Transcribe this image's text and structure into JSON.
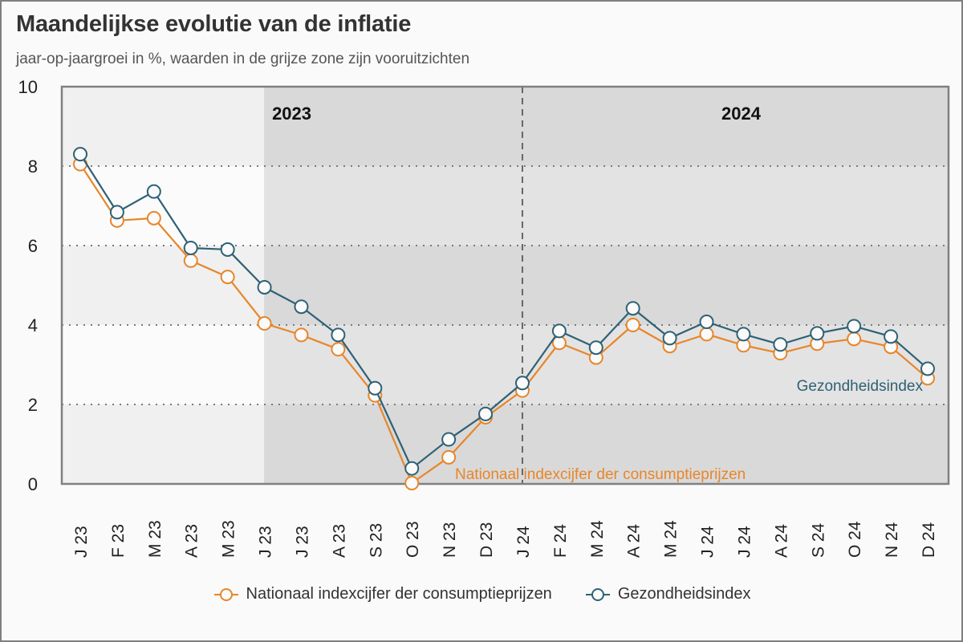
{
  "chart_data": {
    "type": "line",
    "title": "Maandelijkse evolutie van de inflatie",
    "subtitle": "jaar-op-jaargroei in %, waarden in de grijze zone zijn vooruitzichten",
    "xlabel": "",
    "ylabel": "",
    "ylim": [
      0,
      10
    ],
    "yticks": [
      "0",
      "2",
      "4",
      "6",
      "8",
      "10"
    ],
    "grid": "horizontal-dotted",
    "categories": [
      "J 23",
      "F 23",
      "M 23",
      "A 23",
      "M 23",
      "J 23",
      "J 23",
      "A 23",
      "S 23",
      "O 23",
      "N 23",
      "D 23",
      "J 24",
      "F 24",
      "M 24",
      "A 24",
      "M 24",
      "J 24",
      "J 24",
      "A 24",
      "S 24",
      "O 24",
      "N 24",
      "D 24"
    ],
    "forecast_start_index": 5,
    "year_divider_index": 12,
    "year_labels": [
      "2023",
      "2024"
    ],
    "series": [
      {
        "name": "Nationaal indexcijfer der consumptieprijzen",
        "color": "#e8862a",
        "inline_label": "Nationaal indexcijfer der consumptieprijzen",
        "values": [
          8.05,
          6.63,
          6.69,
          5.62,
          5.21,
          4.04,
          3.75,
          3.39,
          2.23,
          0.02,
          0.67,
          1.68,
          2.35,
          3.55,
          3.18,
          4.0,
          3.47,
          3.77,
          3.49,
          3.29,
          3.53,
          3.65,
          3.45,
          2.66
        ]
      },
      {
        "name": "Gezondheidsindex",
        "color": "#2e6175",
        "inline_label": "Gezondheidsindex",
        "values": [
          8.3,
          6.84,
          7.36,
          5.94,
          5.9,
          4.95,
          4.46,
          3.75,
          2.41,
          0.39,
          1.12,
          1.76,
          2.54,
          3.85,
          3.43,
          4.42,
          3.67,
          4.08,
          3.77,
          3.51,
          3.79,
          3.97,
          3.71,
          2.9
        ]
      }
    ],
    "legend": "bottom-center"
  }
}
